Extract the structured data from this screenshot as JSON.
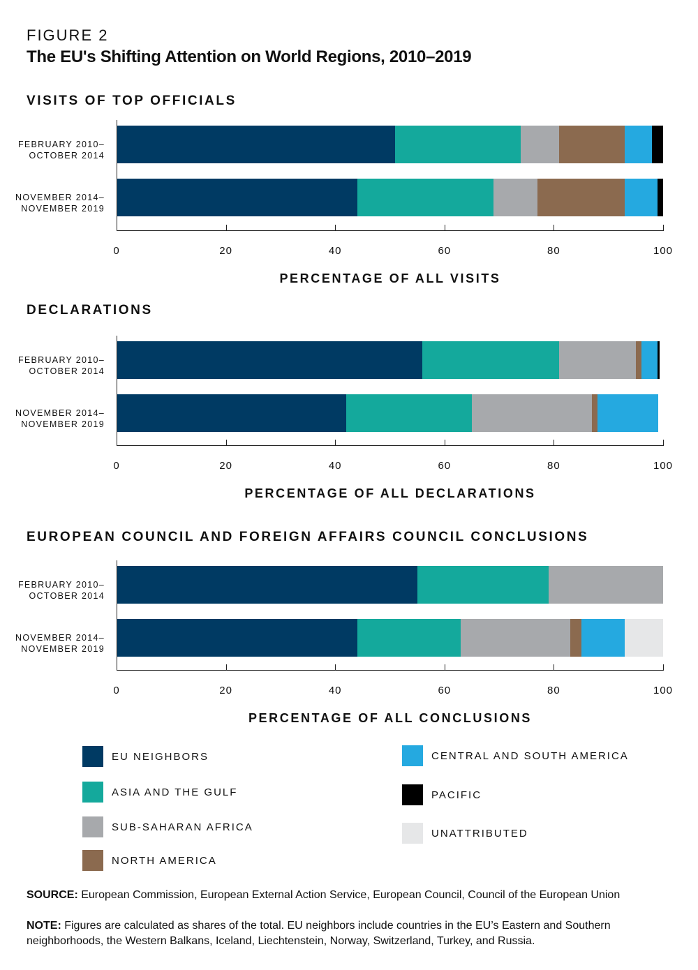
{
  "figure_label": "FIGURE 2",
  "title": "The EU's Shifting Attention on World Regions, 2010–2019",
  "colors": {
    "EU NEIGHBORS": "#003a63",
    "ASIA AND THE GULF": "#14a99c",
    "SUB-SAHARAN AFRICA": "#a7a9ac",
    "NORTH AMERICA": "#8b6a4f",
    "CENTRAL AND SOUTH AMERICA": "#25a9e0",
    "PACIFIC": "#000000",
    "UNATTRIBUTED": "#e6e7e8"
  },
  "chart_data": [
    {
      "type": "bar",
      "stacked": true,
      "orientation": "horizontal",
      "title": "VISITS OF TOP OFFICIALS",
      "xlabel": "PERCENTAGE OF ALL VISITS",
      "xlim": [
        0,
        100
      ],
      "xticks": [
        "0",
        "20",
        "40",
        "60",
        "80",
        "100"
      ],
      "categories": [
        [
          "FEBRUARY 2010–",
          "OCTOBER 2014"
        ],
        [
          "NOVEMBER 2014–",
          "NOVEMBER 2019"
        ]
      ],
      "series": [
        {
          "name": "EU NEIGHBORS",
          "values": [
            51,
            44
          ]
        },
        {
          "name": "ASIA AND THE GULF",
          "values": [
            23,
            25
          ]
        },
        {
          "name": "SUB-SAHARAN AFRICA",
          "values": [
            7,
            8
          ]
        },
        {
          "name": "NORTH AMERICA",
          "values": [
            12,
            16
          ]
        },
        {
          "name": "CENTRAL AND SOUTH AMERICA",
          "values": [
            5,
            6
          ]
        },
        {
          "name": "PACIFIC",
          "values": [
            2,
            1
          ]
        },
        {
          "name": "UNATTRIBUTED",
          "values": [
            0,
            0
          ]
        }
      ]
    },
    {
      "type": "bar",
      "stacked": true,
      "orientation": "horizontal",
      "title": "DECLARATIONS",
      "xlabel": "PERCENTAGE OF ALL DECLARATIONS",
      "xlim": [
        0,
        100
      ],
      "xticks": [
        "0",
        "20",
        "40",
        "60",
        "80",
        "100"
      ],
      "categories": [
        [
          "FEBRUARY 2010–",
          "OCTOBER 2014"
        ],
        [
          "NOVEMBER 2014–",
          "NOVEMBER 2019"
        ]
      ],
      "series": [
        {
          "name": "EU NEIGHBORS",
          "values": [
            56,
            42
          ]
        },
        {
          "name": "ASIA AND THE GULF",
          "values": [
            25,
            23
          ]
        },
        {
          "name": "SUB-SAHARAN AFRICA",
          "values": [
            14,
            22
          ]
        },
        {
          "name": "NORTH AMERICA",
          "values": [
            1,
            1
          ]
        },
        {
          "name": "CENTRAL AND SOUTH AMERICA",
          "values": [
            3,
            11
          ]
        },
        {
          "name": "PACIFIC",
          "values": [
            0.3,
            0
          ]
        },
        {
          "name": "UNATTRIBUTED",
          "values": [
            0,
            0
          ]
        }
      ]
    },
    {
      "type": "bar",
      "stacked": true,
      "orientation": "horizontal",
      "title": "EUROPEAN COUNCIL AND FOREIGN AFFAIRS COUNCIL CONCLUSIONS",
      "xlabel": "PERCENTAGE OF ALL CONCLUSIONS",
      "xlim": [
        0,
        100
      ],
      "xticks": [
        "0",
        "20",
        "40",
        "60",
        "80",
        "100"
      ],
      "categories": [
        [
          "FEBRUARY 2010–",
          "OCTOBER 2014"
        ],
        [
          "NOVEMBER 2014–",
          "NOVEMBER 2019"
        ]
      ],
      "series": [
        {
          "name": "EU NEIGHBORS",
          "values": [
            55,
            44
          ]
        },
        {
          "name": "ASIA AND THE GULF",
          "values": [
            24,
            19
          ]
        },
        {
          "name": "SUB-SAHARAN AFRICA",
          "values": [
            21,
            20
          ]
        },
        {
          "name": "NORTH AMERICA",
          "values": [
            0,
            2
          ]
        },
        {
          "name": "CENTRAL AND SOUTH AMERICA",
          "values": [
            0,
            8
          ]
        },
        {
          "name": "PACIFIC",
          "values": [
            0,
            0
          ]
        },
        {
          "name": "UNATTRIBUTED",
          "values": [
            0,
            7
          ]
        }
      ]
    }
  ],
  "legend": [
    "EU NEIGHBORS",
    "ASIA AND THE GULF",
    "SUB-SAHARAN AFRICA",
    "NORTH AMERICA",
    "CENTRAL AND SOUTH AMERICA",
    "PACIFIC",
    "UNATTRIBUTED"
  ],
  "source": {
    "label": "SOURCE:",
    "text": " European Commission, European External Action Service, European Council, Council of the European Union"
  },
  "note": {
    "label": "NOTE:",
    "text": " Figures are calculated as shares of the total. EU neighbors include countries in the EU’s Eastern and Southern neighborhoods, the Western Balkans, Iceland, Liechtenstein, Norway, Switzerland, Turkey, and Russia."
  }
}
